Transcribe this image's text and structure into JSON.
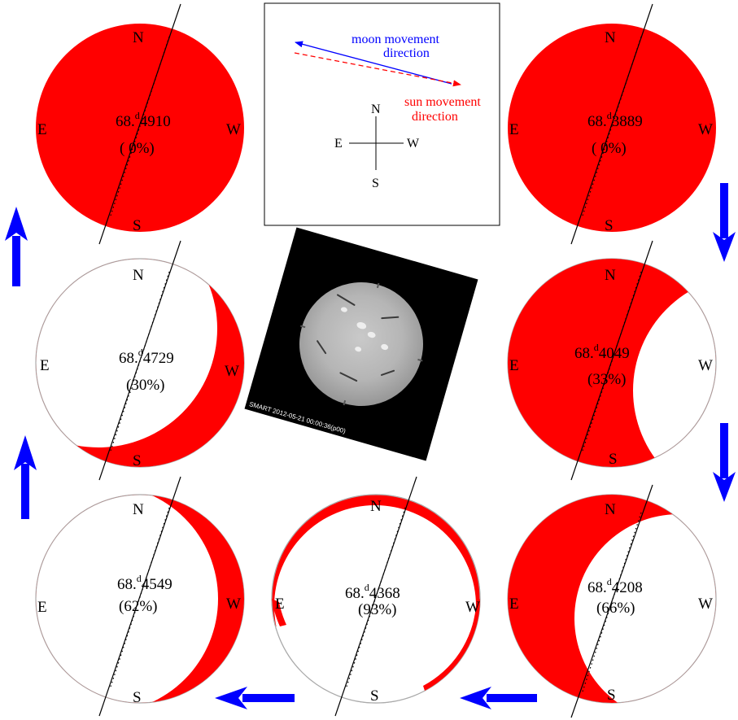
{
  "colors": {
    "eclipse_fill": "#ff0000",
    "moon_arrow": "#0000ff",
    "sun_arrow": "#ff0000",
    "flow_arrow": "#0000ff",
    "disk_outline": "#aaaaaa"
  },
  "legend": {
    "moon_label_1": "moon movement",
    "moon_label_2": "direction",
    "sun_label_1": "sun movement",
    "sun_label_2": "direction",
    "compass": {
      "n": "N",
      "s": "S",
      "e": "E",
      "w": "W"
    }
  },
  "panels": [
    {
      "id": "top-left",
      "day": "68.",
      "d": "d",
      "frac": "4910",
      "pct": "( 0%)",
      "n": "N",
      "s": "S",
      "e": "E",
      "w": "W"
    },
    {
      "id": "top-right",
      "day": "68.",
      "d": "d",
      "frac": "3889",
      "pct": "( 0%)",
      "n": "N",
      "s": "S",
      "e": "E",
      "w": "W"
    },
    {
      "id": "mid-left",
      "day": "68.",
      "d": "d",
      "frac": "4729",
      "pct": "(30%)",
      "n": "N",
      "s": "S",
      "e": "E",
      "w": "W"
    },
    {
      "id": "mid-right",
      "day": "68.",
      "d": "d",
      "frac": "4049",
      "pct": "(33%)",
      "n": "N",
      "s": "S",
      "e": "E",
      "w": "W"
    },
    {
      "id": "bot-left",
      "day": "68.",
      "d": "d",
      "frac": "4549",
      "pct": "(62%)",
      "n": "N",
      "s": "S",
      "e": "E",
      "w": "W"
    },
    {
      "id": "bot-mid",
      "day": "68.",
      "d": "d",
      "frac": "4368",
      "pct": "(93%)",
      "n": "N",
      "s": "S",
      "e": "E",
      "w": "W"
    },
    {
      "id": "bot-right",
      "day": "68.",
      "d": "d",
      "frac": "4208",
      "pct": "(66%)",
      "n": "N",
      "s": "S",
      "e": "E",
      "w": "W"
    }
  ],
  "sun_image": {
    "caption": "SMART 2012-05-21  00:00:36(p00)"
  },
  "flow_arrows": [
    {
      "name": "arrow-down-right-upper",
      "direction": "down"
    },
    {
      "name": "arrow-down-right-lower",
      "direction": "down"
    },
    {
      "name": "arrow-left-bottom-right",
      "direction": "left"
    },
    {
      "name": "arrow-left-bottom-left",
      "direction": "left"
    },
    {
      "name": "arrow-up-left-lower",
      "direction": "up"
    },
    {
      "name": "arrow-up-left-upper",
      "direction": "up"
    }
  ]
}
